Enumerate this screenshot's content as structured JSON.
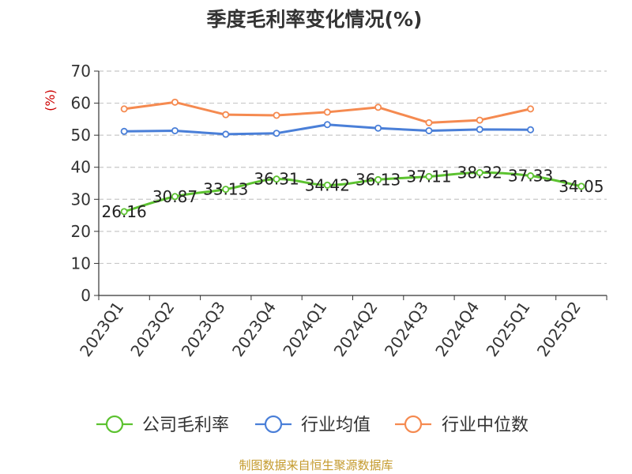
{
  "chart_data": {
    "type": "line",
    "title": "季度毛利率变化情况(%)",
    "ylabel": "(%)",
    "xlabel": "",
    "categories": [
      "2023Q1",
      "2023Q2",
      "2023Q3",
      "2023Q4",
      "2024Q1",
      "2024Q2",
      "2024Q3",
      "2024Q4",
      "2025Q1",
      "2025Q2"
    ],
    "yticks": [
      "0",
      "10",
      "20",
      "30",
      "40",
      "50",
      "60",
      "70"
    ],
    "ylim": [
      0,
      70
    ],
    "grid": "horizontal dashed",
    "legend_position": "bottom",
    "series": [
      {
        "name": "公司毛利率",
        "color": "#5cc230",
        "values": [
          26.16,
          30.87,
          33.13,
          36.31,
          34.42,
          36.13,
          37.11,
          38.32,
          37.33,
          34.05
        ],
        "labels": [
          "26.16",
          "30.87",
          "33.13",
          "36.31",
          "34.42",
          "36.13",
          "37.11",
          "38.32",
          "37.33",
          "34.05"
        ]
      },
      {
        "name": "行业均值",
        "color": "#4a7fd8",
        "values": [
          51.2,
          51.4,
          50.3,
          50.6,
          53.3,
          52.2,
          51.4,
          51.8,
          51.7,
          null
        ]
      },
      {
        "name": "行业中位数",
        "color": "#f58a50",
        "values": [
          58.2,
          60.3,
          56.4,
          56.2,
          57.2,
          58.7,
          53.9,
          54.7,
          58.2,
          null
        ]
      }
    ]
  },
  "source_note": "制图数据来自恒生聚源数据库"
}
